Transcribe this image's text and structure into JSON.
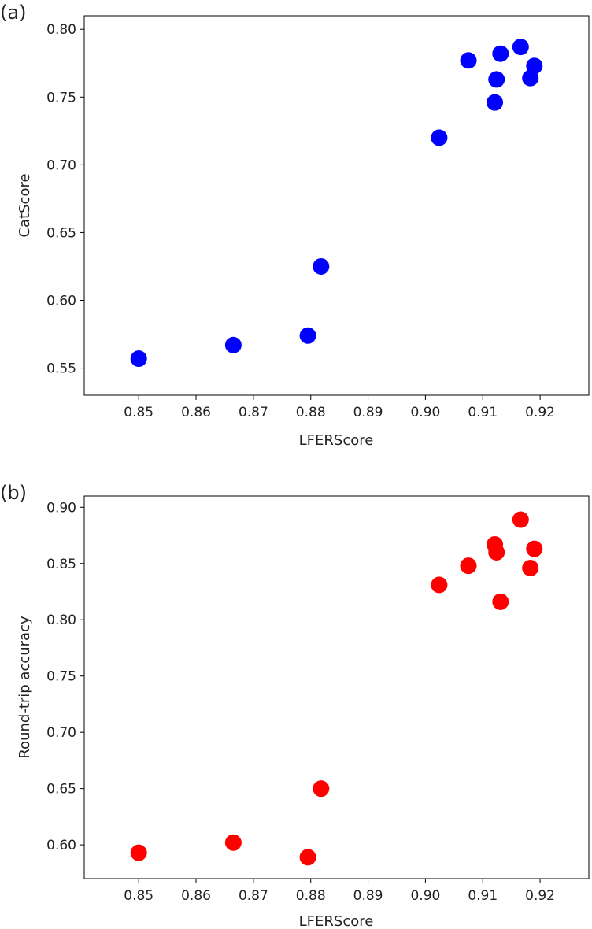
{
  "chart_data": [
    {
      "panel": "(a)",
      "type": "scatter",
      "xlabel": "LFERScore",
      "ylabel": "CatScore",
      "xlim": [
        0.8405,
        0.9285
      ],
      "ylim": [
        0.53,
        0.81
      ],
      "xticks": [
        "0.85",
        "0.86",
        "0.87",
        "0.88",
        "0.89",
        "0.90",
        "0.91",
        "0.92"
      ],
      "yticks": [
        "0.55",
        "0.60",
        "0.65",
        "0.70",
        "0.75",
        "0.80"
      ],
      "grid": false,
      "color": "#0000ff",
      "series": [
        {
          "x": [
            0.85,
            0.8665,
            0.8795,
            0.8818,
            0.9024,
            0.9075,
            0.9121,
            0.9124,
            0.9131,
            0.9166,
            0.9183,
            0.919
          ],
          "y": [
            0.557,
            0.567,
            0.574,
            0.625,
            0.72,
            0.777,
            0.746,
            0.763,
            0.782,
            0.787,
            0.764,
            0.773
          ]
        }
      ]
    },
    {
      "panel": "(b)",
      "type": "scatter",
      "xlabel": "LFERScore",
      "ylabel": "Round-trip accuracy",
      "xlim": [
        0.8405,
        0.9285
      ],
      "ylim": [
        0.57,
        0.91
      ],
      "xticks": [
        "0.85",
        "0.86",
        "0.87",
        "0.88",
        "0.89",
        "0.90",
        "0.91",
        "0.92"
      ],
      "yticks": [
        "0.60",
        "0.65",
        "0.70",
        "0.75",
        "0.80",
        "0.85",
        "0.90"
      ],
      "grid": false,
      "color": "#ff0000",
      "series": [
        {
          "x": [
            0.85,
            0.8665,
            0.8795,
            0.8818,
            0.9024,
            0.9075,
            0.9121,
            0.9124,
            0.9131,
            0.9166,
            0.9183,
            0.919
          ],
          "y": [
            0.593,
            0.602,
            0.589,
            0.65,
            0.831,
            0.848,
            0.867,
            0.86,
            0.816,
            0.889,
            0.846,
            0.863
          ]
        }
      ]
    }
  ]
}
